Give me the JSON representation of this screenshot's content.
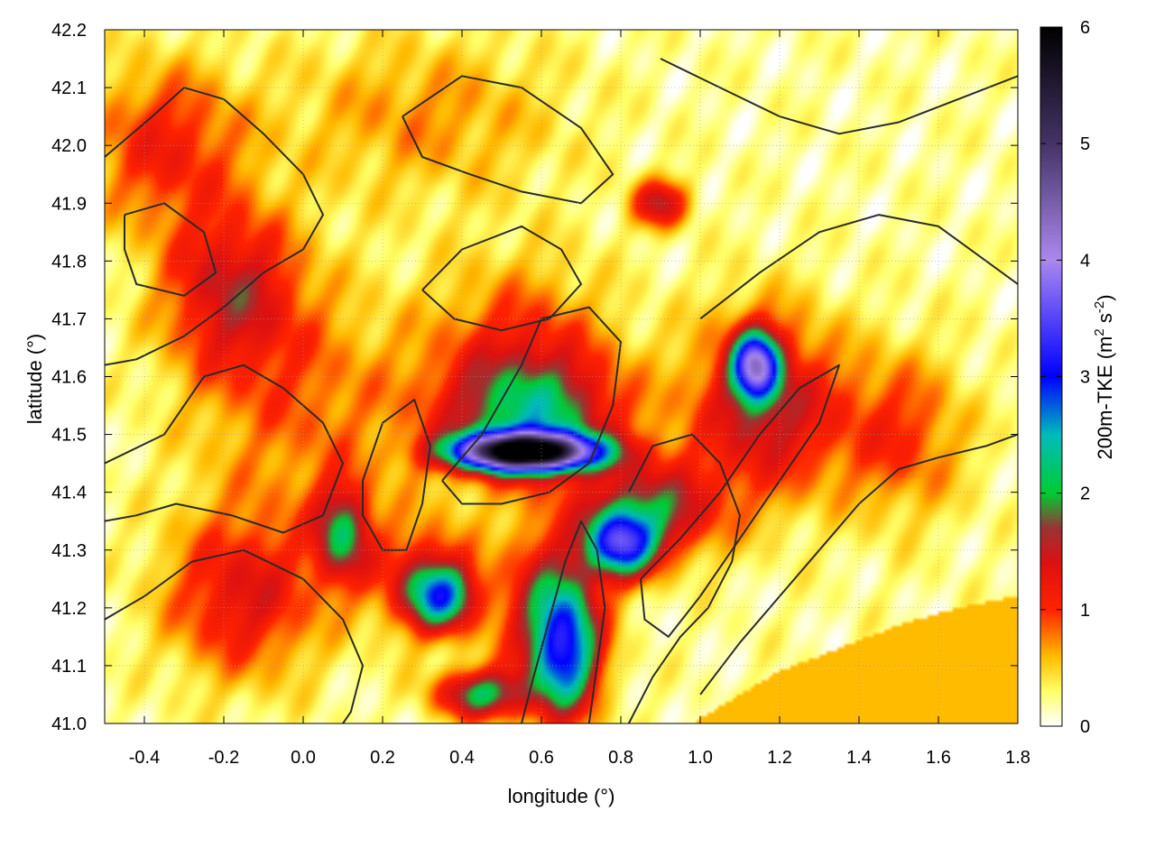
{
  "chart_data": {
    "type": "heatmap",
    "title": "",
    "xlabel": "longitude (°)",
    "ylabel": "latitude (°)",
    "colorbar_label": "200m-TKE (m² s⁻²)",
    "colorbar_label_parts": {
      "main": "200m-TKE (m",
      "sup1": "2",
      "mid": " s",
      "sup2": "-2",
      "end": ")"
    },
    "xlim": [
      -0.5,
      1.8
    ],
    "ylim": [
      41.0,
      42.2
    ],
    "clim": [
      0,
      6
    ],
    "xticks": [
      -0.4,
      -0.2,
      0.0,
      0.2,
      0.4,
      0.6,
      0.8,
      1.0,
      1.2,
      1.4,
      1.6,
      1.8
    ],
    "xtick_labels": [
      "-0.4",
      "-0.2",
      "0.0",
      "0.2",
      "0.4",
      "0.6",
      "0.8",
      "1.0",
      "1.2",
      "1.4",
      "1.6",
      "1.8"
    ],
    "yticks": [
      41.0,
      41.1,
      41.2,
      41.3,
      41.4,
      41.5,
      41.6,
      41.7,
      41.8,
      41.9,
      42.0,
      42.1,
      42.2
    ],
    "ytick_labels": [
      "41.0",
      "41.1",
      "41.2",
      "41.3",
      "41.4",
      "41.5",
      "41.6",
      "41.7",
      "41.8",
      "41.9",
      "42.0",
      "42.1",
      "42.2"
    ],
    "cticks": [
      0,
      1,
      2,
      3,
      4,
      5,
      6
    ],
    "ctick_labels": [
      "0",
      "1",
      "2",
      "3",
      "4",
      "5",
      "6"
    ],
    "grid": true,
    "colormap": [
      {
        "v": 0.0,
        "color": "#ffffff"
      },
      {
        "v": 0.3,
        "color": "#ffff66"
      },
      {
        "v": 0.6,
        "color": "#ffbb00"
      },
      {
        "v": 1.0,
        "color": "#ff2200"
      },
      {
        "v": 1.4,
        "color": "#dd1111"
      },
      {
        "v": 1.7,
        "color": "#993333"
      },
      {
        "v": 2.0,
        "color": "#00cc33"
      },
      {
        "v": 2.5,
        "color": "#00bbbb"
      },
      {
        "v": 3.0,
        "color": "#0000ff"
      },
      {
        "v": 4.0,
        "color": "#aa88ee"
      },
      {
        "v": 5.0,
        "color": "#443366"
      },
      {
        "v": 6.0,
        "color": "#000000"
      }
    ],
    "tke_features": [
      {
        "lon": 0.56,
        "lat": 41.47,
        "slon": 0.12,
        "slat": 0.022,
        "amp": 5.8
      },
      {
        "lon": 0.58,
        "lat": 41.53,
        "slon": 0.16,
        "slat": 0.07,
        "amp": 1.4
      },
      {
        "lon": 0.55,
        "lat": 41.62,
        "slon": 0.16,
        "slat": 0.12,
        "amp": 0.9
      },
      {
        "lon": 1.14,
        "lat": 41.62,
        "slon": 0.04,
        "slat": 0.04,
        "amp": 3.0
      },
      {
        "lon": 1.16,
        "lat": 41.55,
        "slon": 0.13,
        "slat": 0.11,
        "amp": 1.4
      },
      {
        "lon": 0.8,
        "lat": 41.31,
        "slon": 0.06,
        "slat": 0.04,
        "amp": 2.6
      },
      {
        "lon": 0.88,
        "lat": 41.37,
        "slon": 0.12,
        "slat": 0.06,
        "amp": 1.5
      },
      {
        "lon": 0.66,
        "lat": 41.12,
        "slon": 0.06,
        "slat": 0.08,
        "amp": 2.2
      },
      {
        "lon": 0.62,
        "lat": 41.2,
        "slon": 0.09,
        "slat": 0.1,
        "amp": 1.3
      },
      {
        "lon": 0.35,
        "lat": 41.22,
        "slon": 0.06,
        "slat": 0.04,
        "amp": 1.9
      },
      {
        "lon": 0.3,
        "lat": 41.25,
        "slon": 0.09,
        "slat": 0.07,
        "amp": 1.0
      },
      {
        "lon": -0.18,
        "lat": 41.75,
        "slon": 0.12,
        "slat": 0.1,
        "amp": 1.2
      },
      {
        "lon": -0.35,
        "lat": 42.0,
        "slon": 0.14,
        "slat": 0.1,
        "amp": 0.9
      },
      {
        "lon": -0.15,
        "lat": 41.22,
        "slon": 0.14,
        "slat": 0.1,
        "amp": 1.1
      },
      {
        "lon": 0.1,
        "lat": 41.33,
        "slon": 0.05,
        "slat": 0.06,
        "amp": 1.6
      },
      {
        "lon": 0.45,
        "lat": 41.05,
        "slon": 0.08,
        "slat": 0.03,
        "amp": 1.8
      },
      {
        "lon": 0.9,
        "lat": 41.9,
        "slon": 0.05,
        "slat": 0.03,
        "amp": 1.3
      },
      {
        "lon": 0.0,
        "lat": 41.55,
        "slon": 0.2,
        "slat": 0.15,
        "amp": 0.6
      },
      {
        "lon": 1.5,
        "lat": 41.5,
        "slon": 0.12,
        "slat": 0.1,
        "amp": 0.8
      },
      {
        "lon": 0.3,
        "lat": 42.05,
        "slon": 0.25,
        "slat": 0.1,
        "amp": 0.5
      }
    ],
    "sea_region": {
      "value": 0.6,
      "boundary": [
        [
          0.98,
          41.0
        ],
        [
          1.1,
          41.05
        ],
        [
          1.2,
          41.09
        ],
        [
          1.35,
          41.13
        ],
        [
          1.5,
          41.17
        ],
        [
          1.65,
          41.2
        ],
        [
          1.8,
          41.22
        ],
        [
          1.8,
          41.0
        ]
      ]
    },
    "contours": [
      [
        [
          -0.5,
          41.98
        ],
        [
          -0.38,
          42.05
        ],
        [
          -0.3,
          42.1
        ],
        [
          -0.2,
          42.08
        ],
        [
          -0.1,
          42.02
        ],
        [
          0.0,
          41.95
        ],
        [
          0.05,
          41.88
        ],
        [
          0.0,
          41.82
        ],
        [
          -0.1,
          41.78
        ],
        [
          -0.2,
          41.72
        ],
        [
          -0.3,
          41.67
        ],
        [
          -0.42,
          41.63
        ],
        [
          -0.5,
          41.62
        ]
      ],
      [
        [
          -0.5,
          41.45
        ],
        [
          -0.35,
          41.5
        ],
        [
          -0.25,
          41.6
        ],
        [
          -0.15,
          41.62
        ],
        [
          -0.05,
          41.58
        ],
        [
          0.05,
          41.52
        ],
        [
          0.1,
          41.45
        ],
        [
          0.05,
          41.36
        ],
        [
          -0.05,
          41.33
        ],
        [
          -0.18,
          41.36
        ],
        [
          -0.32,
          41.38
        ],
        [
          -0.42,
          41.36
        ],
        [
          -0.5,
          41.35
        ]
      ],
      [
        [
          0.15,
          41.42
        ],
        [
          0.2,
          41.52
        ],
        [
          0.28,
          41.56
        ],
        [
          0.32,
          41.48
        ],
        [
          0.3,
          41.38
        ],
        [
          0.26,
          41.3
        ],
        [
          0.2,
          41.3
        ],
        [
          0.15,
          41.36
        ],
        [
          0.15,
          41.42
        ]
      ],
      [
        [
          0.35,
          41.42
        ],
        [
          0.45,
          41.5
        ],
        [
          0.55,
          41.62
        ],
        [
          0.6,
          41.7
        ],
        [
          0.72,
          41.72
        ],
        [
          0.8,
          41.66
        ],
        [
          0.78,
          41.55
        ],
        [
          0.72,
          41.45
        ],
        [
          0.62,
          41.4
        ],
        [
          0.5,
          41.38
        ],
        [
          0.4,
          41.38
        ],
        [
          0.35,
          41.42
        ]
      ],
      [
        [
          0.3,
          41.75
        ],
        [
          0.4,
          41.82
        ],
        [
          0.55,
          41.86
        ],
        [
          0.65,
          41.82
        ],
        [
          0.7,
          41.76
        ],
        [
          0.62,
          41.7
        ],
        [
          0.5,
          41.68
        ],
        [
          0.38,
          41.7
        ],
        [
          0.3,
          41.75
        ]
      ],
      [
        [
          0.25,
          42.05
        ],
        [
          0.4,
          42.12
        ],
        [
          0.55,
          42.1
        ],
        [
          0.7,
          42.03
        ],
        [
          0.78,
          41.95
        ],
        [
          0.7,
          41.9
        ],
        [
          0.55,
          41.92
        ],
        [
          0.42,
          41.95
        ],
        [
          0.3,
          41.98
        ],
        [
          0.25,
          42.05
        ]
      ],
      [
        [
          0.85,
          41.25
        ],
        [
          0.95,
          41.32
        ],
        [
          1.05,
          41.4
        ],
        [
          1.15,
          41.5
        ],
        [
          1.25,
          41.58
        ],
        [
          1.35,
          41.62
        ],
        [
          1.3,
          41.52
        ],
        [
          1.2,
          41.42
        ],
        [
          1.1,
          41.32
        ],
        [
          1.0,
          41.22
        ],
        [
          0.92,
          41.15
        ],
        [
          0.86,
          41.18
        ],
        [
          0.85,
          41.25
        ]
      ],
      [
        [
          1.0,
          41.05
        ],
        [
          1.1,
          41.14
        ],
        [
          1.2,
          41.22
        ],
        [
          1.3,
          41.3
        ],
        [
          1.4,
          41.38
        ],
        [
          1.5,
          41.44
        ],
        [
          1.6,
          41.46
        ],
        [
          1.72,
          41.48
        ],
        [
          1.8,
          41.5
        ]
      ],
      [
        [
          1.0,
          41.7
        ],
        [
          1.15,
          41.78
        ],
        [
          1.3,
          41.85
        ],
        [
          1.45,
          41.88
        ],
        [
          1.6,
          41.86
        ],
        [
          1.72,
          41.8
        ],
        [
          1.8,
          41.76
        ]
      ],
      [
        [
          0.9,
          42.15
        ],
        [
          1.05,
          42.1
        ],
        [
          1.2,
          42.05
        ],
        [
          1.35,
          42.02
        ],
        [
          1.5,
          42.04
        ],
        [
          1.65,
          42.08
        ],
        [
          1.8,
          42.12
        ]
      ],
      [
        [
          0.55,
          41.0
        ],
        [
          0.58,
          41.08
        ],
        [
          0.62,
          41.18
        ],
        [
          0.66,
          41.28
        ],
        [
          0.7,
          41.35
        ],
        [
          0.74,
          41.3
        ],
        [
          0.76,
          41.2
        ],
        [
          0.74,
          41.1
        ],
        [
          0.72,
          41.0
        ]
      ],
      [
        [
          -0.5,
          41.18
        ],
        [
          -0.4,
          41.22
        ],
        [
          -0.28,
          41.28
        ],
        [
          -0.15,
          41.3
        ],
        [
          0.0,
          41.25
        ],
        [
          0.1,
          41.18
        ],
        [
          0.15,
          41.1
        ],
        [
          0.12,
          41.02
        ],
        [
          0.1,
          41.0
        ]
      ],
      [
        [
          0.82,
          41.0
        ],
        [
          0.88,
          41.08
        ],
        [
          0.95,
          41.15
        ],
        [
          1.02,
          41.2
        ],
        [
          1.08,
          41.28
        ],
        [
          1.1,
          41.36
        ],
        [
          1.05,
          41.45
        ],
        [
          0.98,
          41.5
        ],
        [
          0.88,
          41.48
        ],
        [
          0.82,
          41.4
        ]
      ],
      [
        [
          -0.45,
          41.88
        ],
        [
          -0.35,
          41.9
        ],
        [
          -0.25,
          41.85
        ],
        [
          -0.22,
          41.78
        ],
        [
          -0.3,
          41.74
        ],
        [
          -0.42,
          41.76
        ],
        [
          -0.45,
          41.82
        ],
        [
          -0.45,
          41.88
        ]
      ]
    ]
  }
}
